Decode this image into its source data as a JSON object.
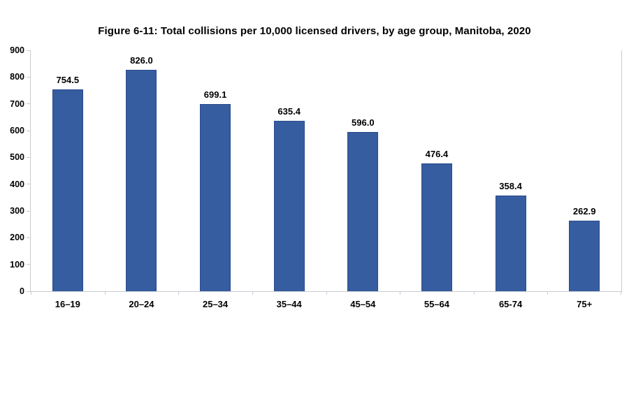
{
  "chart_data": {
    "type": "bar",
    "title": "Figure 6-11: Total collisions per 10,000 licensed drivers, by age group, Manitoba, 2020",
    "categories": [
      "16–19",
      "20–24",
      "25–34",
      "35–44",
      "45–54",
      "55–64",
      "65-74",
      "75+"
    ],
    "values": [
      754.5,
      826.0,
      699.1,
      635.4,
      596.0,
      476.4,
      358.4,
      262.9
    ],
    "value_labels": [
      "754.5",
      "826.0",
      "699.1",
      "635.4",
      "596.0",
      "476.4",
      "358.4",
      "262.9"
    ],
    "xlabel": "",
    "ylabel": "",
    "ylim": [
      0,
      900
    ],
    "ytick_interval": 100,
    "ytick_labels": [
      "0",
      "100",
      "200",
      "300",
      "400",
      "500",
      "600",
      "700",
      "800",
      "900"
    ],
    "grid": false,
    "legend_position": "none",
    "data_labels": "above bars",
    "colors": {
      "bar_fill": "#365d9f",
      "bar_border": "#2a4b8d",
      "axis_line": "#c8cbd2",
      "text": "#000000",
      "background": "#ffffff"
    }
  }
}
